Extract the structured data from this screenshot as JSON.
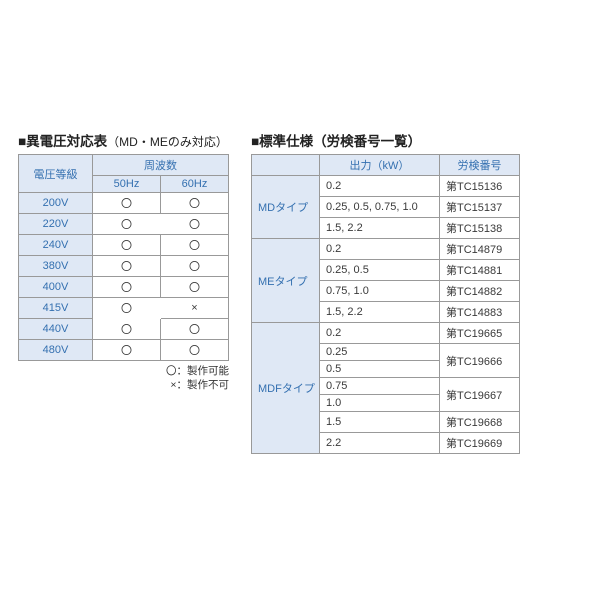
{
  "left": {
    "title_prefix": "■",
    "title": "異電圧対応表",
    "title_sub": "（MD・MEのみ対応）",
    "col_voltage": "電圧等級",
    "col_freq": "周波数",
    "freq_a": "50Hz",
    "freq_b": "60Hz",
    "mark_ok": "〇",
    "mark_ng": "×",
    "rows": [
      {
        "v": "200V",
        "a": "〇",
        "b": "〇",
        "open_right": false
      },
      {
        "v": "220V",
        "a": "〇",
        "b": "〇",
        "open_right": true
      },
      {
        "v": "240V",
        "a": "〇",
        "b": "〇",
        "open_right": false
      },
      {
        "v": "380V",
        "a": "〇",
        "b": "〇",
        "open_right": false
      },
      {
        "v": "400V",
        "a": "〇",
        "b": "〇",
        "open_right": false
      },
      {
        "v": "415V",
        "a": "〇",
        "b": "×",
        "open_right": true
      },
      {
        "v": "440V",
        "a": "〇",
        "b": "〇",
        "open_right": false
      },
      {
        "v": "480V",
        "a": "〇",
        "b": "〇",
        "open_right": false
      }
    ],
    "legend_line1": "〇：製作可能",
    "legend_line2": "×：製作不可",
    "colors": {
      "header_bg": "#dfe8f5",
      "header_fg": "#3470b0",
      "border": "#999999"
    }
  },
  "right": {
    "title_prefix": "■",
    "title": "標準仕様（労検番号一覧）",
    "col_type_blank": "",
    "col_output": "出力（kW）",
    "col_num": "労検番号",
    "groups": [
      {
        "name": "MDタイプ",
        "items": [
          {
            "out": "0.2",
            "num": "第TC15136"
          },
          {
            "out": "0.25, 0.5, 0.75, 1.0",
            "num": "第TC15137"
          },
          {
            "out": "1.5, 2.2",
            "num": "第TC15138"
          }
        ]
      },
      {
        "name": "MEタイプ",
        "items": [
          {
            "out": "0.2",
            "num": "第TC14879"
          },
          {
            "out": "0.25, 0.5",
            "num": "第TC14881"
          },
          {
            "out": "0.75, 1.0",
            "num": "第TC14882"
          },
          {
            "out": "1.5, 2.2",
            "num": "第TC14883"
          }
        ]
      },
      {
        "name": "MDFタイプ",
        "items": [
          {
            "out": "0.2",
            "num": "第TC19665"
          },
          {
            "out": "0.25",
            "num": "第TC19666",
            "num_rowspan": 2
          },
          {
            "out": "0.5"
          },
          {
            "out": "0.75",
            "num": "第TC19667",
            "num_rowspan": 2
          },
          {
            "out": "1.0"
          },
          {
            "out": "1.5",
            "num": "第TC19668"
          },
          {
            "out": "2.2",
            "num": "第TC19669"
          }
        ]
      }
    ],
    "colors": {
      "header_bg": "#dfe8f5",
      "header_fg": "#3470b0",
      "border": "#999999"
    }
  }
}
